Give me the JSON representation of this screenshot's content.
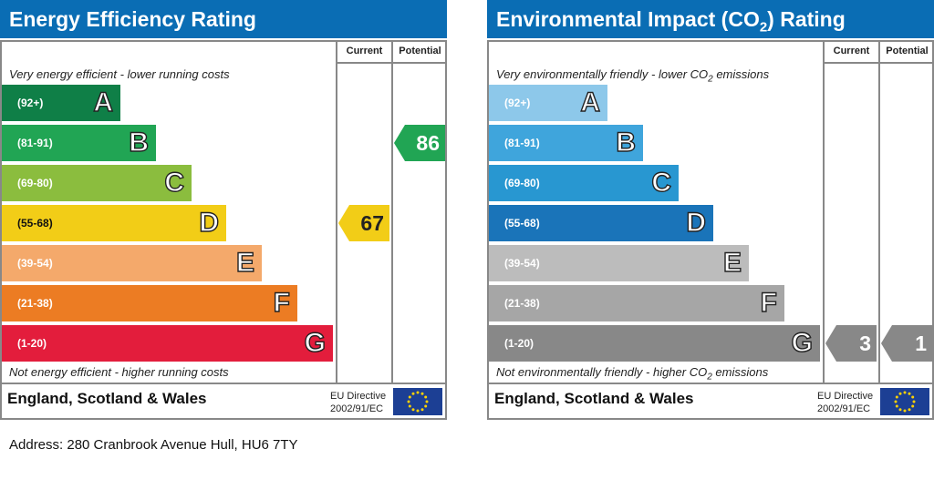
{
  "chart_data": [
    {
      "type": "table",
      "title": "Energy Efficiency Rating",
      "columns": [
        "Current",
        "Potential"
      ],
      "top_caption": "Very energy efficient - lower running costs",
      "bottom_caption": "Not energy efficient - higher running costs",
      "bands": [
        {
          "range": "(92+)",
          "letter": "A",
          "color": "#0f7f47"
        },
        {
          "range": "(81-91)",
          "letter": "B",
          "color": "#21a554"
        },
        {
          "range": "(69-80)",
          "letter": "C",
          "color": "#8bbd3e"
        },
        {
          "range": "(55-68)",
          "letter": "D",
          "color": "#f2cd17"
        },
        {
          "range": "(39-54)",
          "letter": "E",
          "color": "#f4a96b"
        },
        {
          "range": "(21-38)",
          "letter": "F",
          "color": "#ec7c23"
        },
        {
          "range": "(1-20)",
          "letter": "G",
          "color": "#e31d3c"
        }
      ],
      "current": {
        "value": 67,
        "band": "D",
        "color": "#f2cd17"
      },
      "potential": {
        "value": 86,
        "band": "B",
        "color": "#21a554"
      },
      "region": "England, Scotland & Wales",
      "directive": [
        "EU Directive",
        "2002/91/EC"
      ]
    },
    {
      "type": "table",
      "title": "Environmental Impact (CO2) Rating",
      "columns": [
        "Current",
        "Potential"
      ],
      "top_caption": "Very environmentally friendly - lower CO2 emissions",
      "bottom_caption": "Not environmentally friendly - higher CO2 emissions",
      "bands": [
        {
          "range": "(92+)",
          "letter": "A",
          "color": "#8dc8ea"
        },
        {
          "range": "(81-91)",
          "letter": "B",
          "color": "#3fa5dc"
        },
        {
          "range": "(69-80)",
          "letter": "C",
          "color": "#2897d1"
        },
        {
          "range": "(55-68)",
          "letter": "D",
          "color": "#1a74b9"
        },
        {
          "range": "(39-54)",
          "letter": "E",
          "color": "#bcbcbc"
        },
        {
          "range": "(21-38)",
          "letter": "F",
          "color": "#a6a6a6"
        },
        {
          "range": "(1-20)",
          "letter": "G",
          "color": "#888888"
        }
      ],
      "current": {
        "value": 3,
        "band": "G",
        "color": "#888888"
      },
      "potential": {
        "value": 1,
        "band": "G",
        "color": "#888888"
      },
      "region": "England, Scotland & Wales",
      "directive": [
        "EU Directive",
        "2002/91/EC"
      ]
    }
  ],
  "address": "Address: 280 Cranbrook Avenue Hull, HU6 7TY"
}
